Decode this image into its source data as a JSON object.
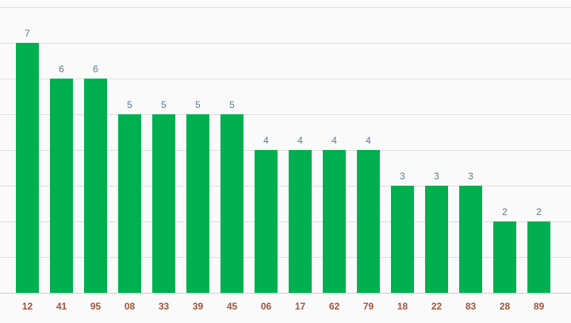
{
  "colors": {
    "bar": "#00b050",
    "background": "#fafafa",
    "grid": "#dedede",
    "value_label": "#5b7a8c",
    "tick_label": "#a0523a"
  },
  "chart_data": {
    "type": "bar",
    "title": "",
    "xlabel": "",
    "ylabel": "",
    "categories": [
      "12",
      "41",
      "95",
      "08",
      "33",
      "39",
      "45",
      "06",
      "17",
      "62",
      "79",
      "18",
      "22",
      "83",
      "28",
      "89"
    ],
    "values": [
      7,
      6,
      6,
      5,
      5,
      5,
      5,
      4,
      4,
      4,
      4,
      3,
      3,
      3,
      2,
      2
    ],
    "ylim": [
      0,
      8
    ],
    "grid": true,
    "legend": "none",
    "show_data_labels": true
  }
}
